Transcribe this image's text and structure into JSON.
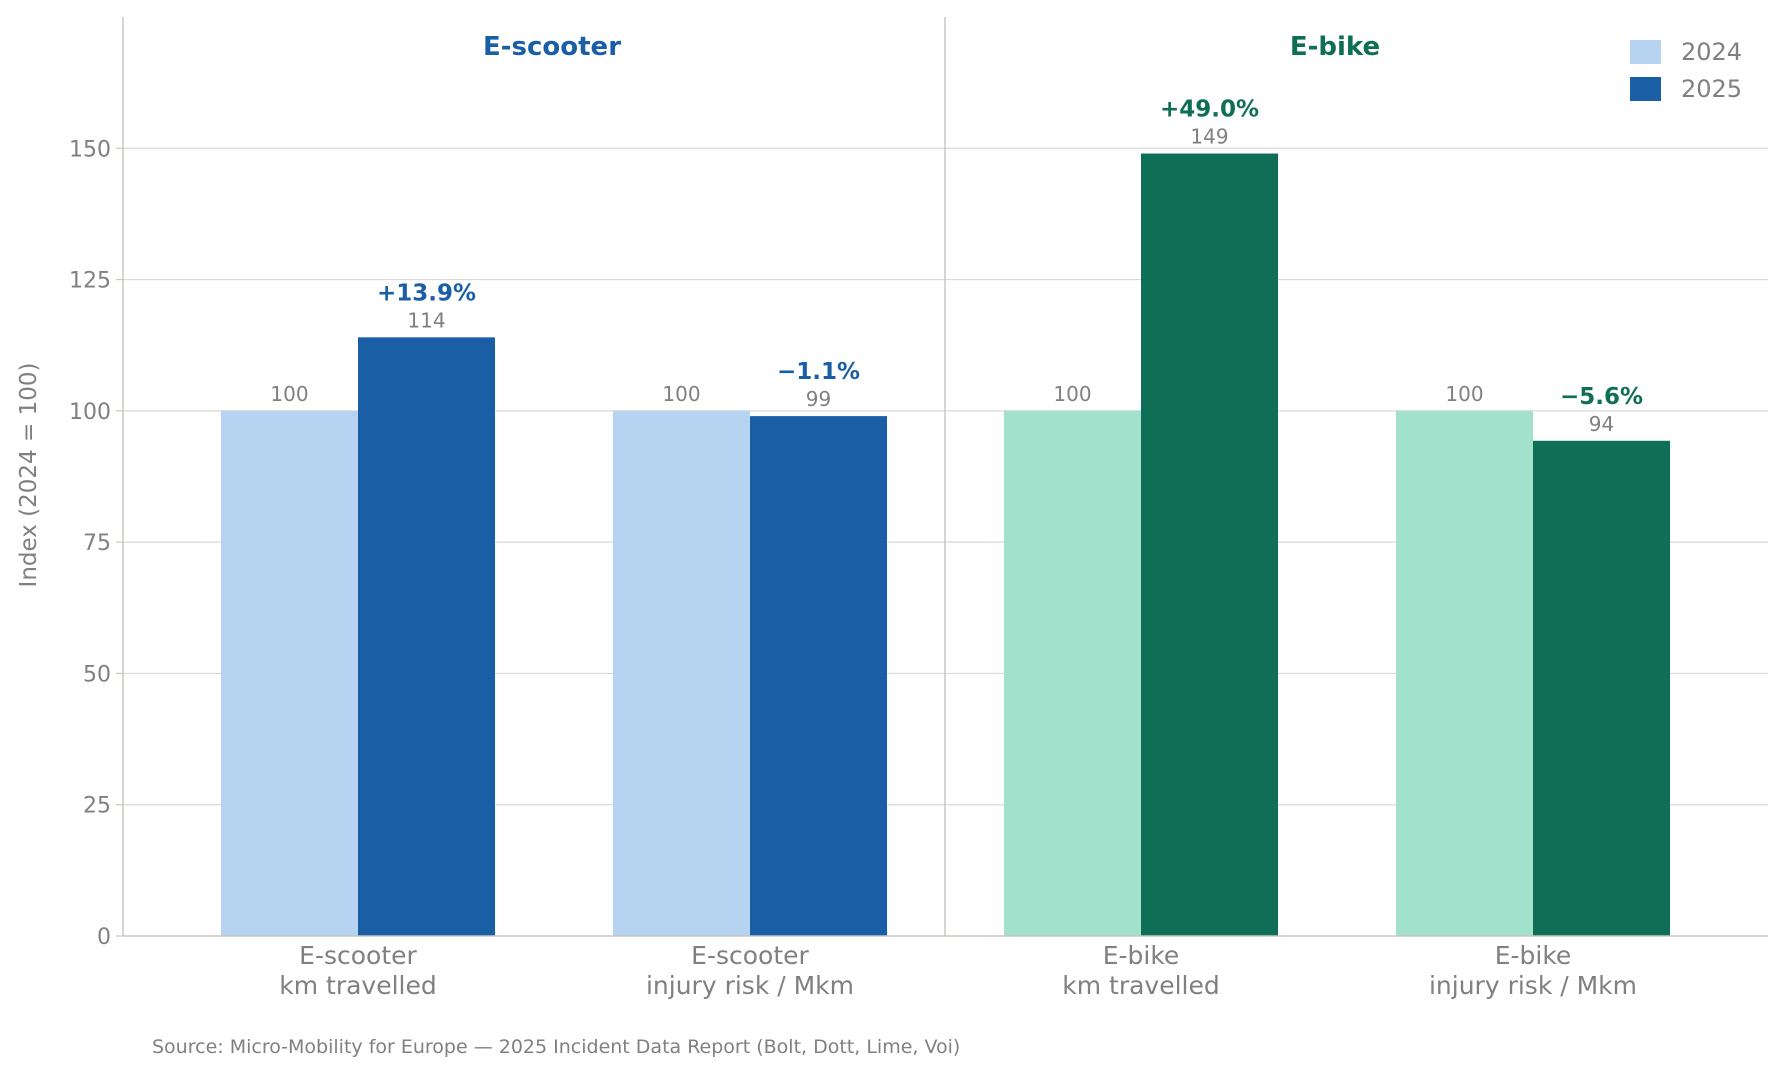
{
  "chart_data": {
    "type": "bar",
    "ylabel": "Index (2024 = 100)",
    "ylim": [
      0,
      175
    ],
    "yticks": [
      0,
      25,
      50,
      75,
      100,
      125,
      150
    ],
    "grid": true,
    "legend_position": "top-right",
    "legend": [
      "2024",
      "2025"
    ],
    "panels": [
      {
        "title": "E-scooter",
        "color": "#1a5fa6"
      },
      {
        "title": "E-bike",
        "color": "#0f6e56"
      }
    ],
    "categories": [
      {
        "line1": "E-scooter",
        "line2": "km travelled",
        "panel": 0,
        "v2024": 100,
        "v2025": 114,
        "label2024": "100",
        "label2025": "114",
        "change": "+13.9%"
      },
      {
        "line1": "E-scooter",
        "line2": "injury risk / Mkm",
        "panel": 0,
        "v2024": 100,
        "v2025": 99,
        "label2024": "100",
        "label2025": "99",
        "change": "−1.1%"
      },
      {
        "line1": "E-bike",
        "line2": "km travelled",
        "panel": 1,
        "v2024": 100,
        "v2025": 149,
        "label2024": "100",
        "label2025": "149",
        "change": "+49.0%"
      },
      {
        "line1": "E-bike",
        "line2": "injury risk / Mkm",
        "panel": 1,
        "v2024": 100,
        "v2025": 94.3,
        "label2024": "100",
        "label2025": "94",
        "change": "−5.6%"
      }
    ],
    "colors": {
      "scooter_2024": "#b6d3f2",
      "scooter_2025": "#1a5fa6",
      "bike_2024": "#a2e1cb",
      "bike_2025": "#0f6e56",
      "legend_2024": "#b6d3f2",
      "legend_2025": "#1a5fa6"
    }
  },
  "source": "Source: Micro-Mobility for Europe — 2025 Incident Data Report (Bolt, Dott, Lime, Voi)"
}
